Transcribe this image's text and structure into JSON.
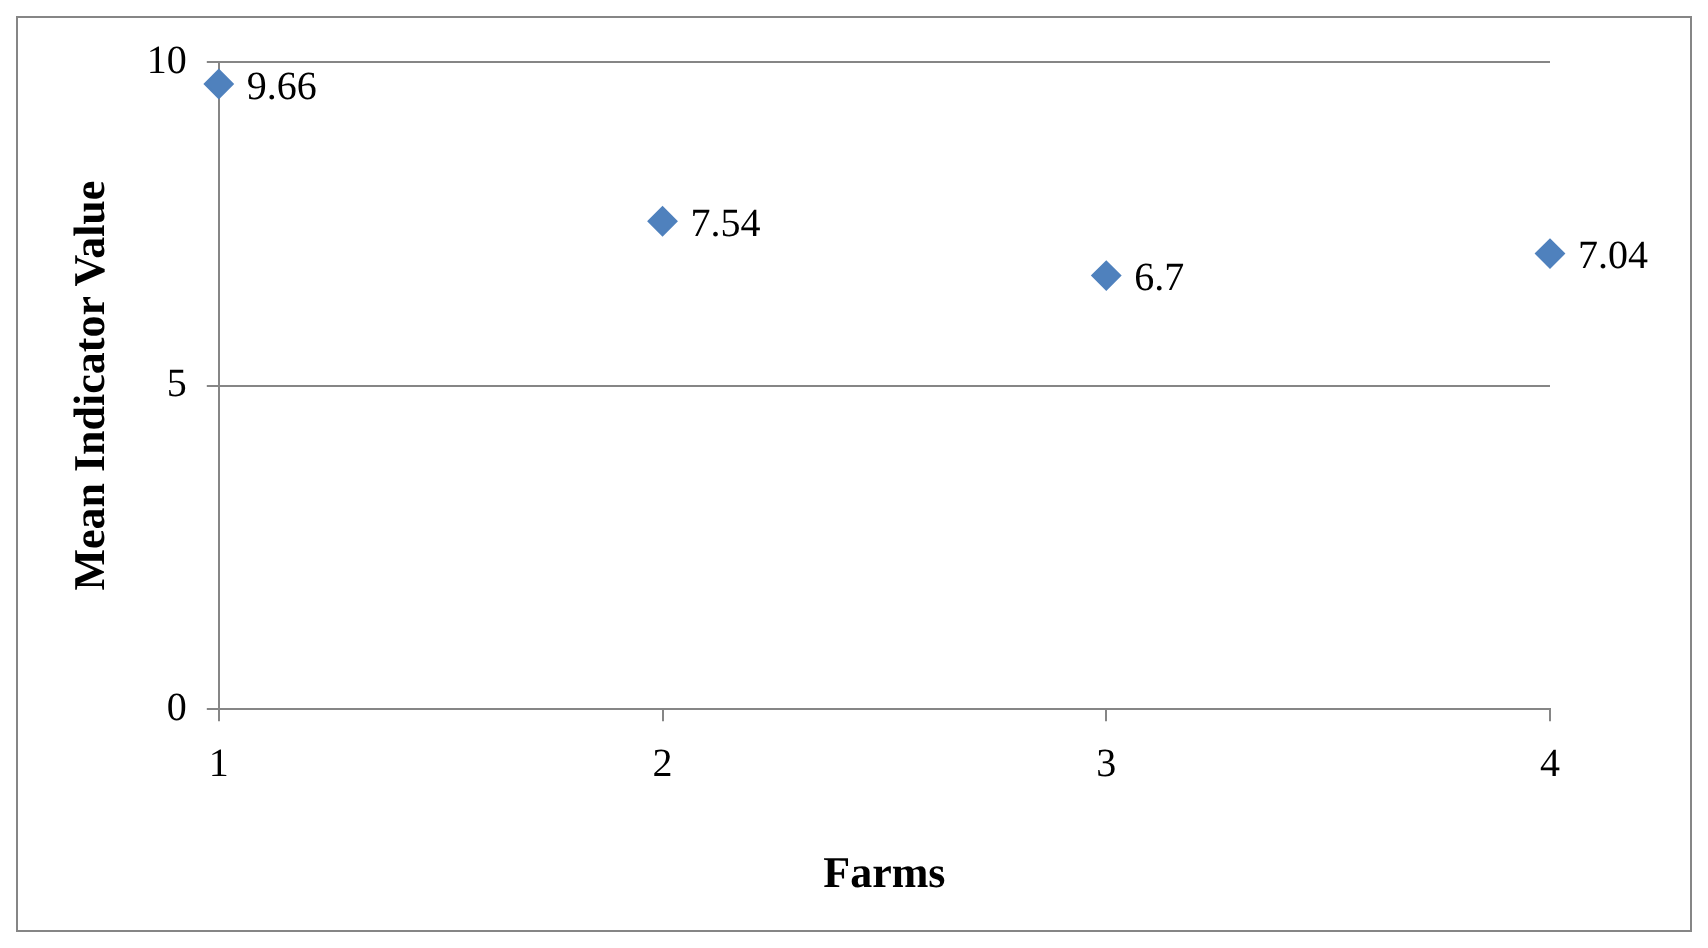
{
  "chart_data": {
    "type": "scatter",
    "xlabel": "Farms",
    "ylabel": "Mean Indicator Value",
    "x": [
      1,
      2,
      3,
      4
    ],
    "series": [
      {
        "color": "#4f81bd",
        "values": [
          9.66,
          7.54,
          6.7,
          7.04
        ]
      }
    ],
    "xlim": [
      1,
      4
    ],
    "xticks": [
      1,
      2,
      3,
      4
    ],
    "ylim": [
      0,
      10
    ],
    "yticks": [
      0,
      5,
      10
    ],
    "grid": "y",
    "marker": "diamond",
    "data_labels": true,
    "legend": false
  }
}
